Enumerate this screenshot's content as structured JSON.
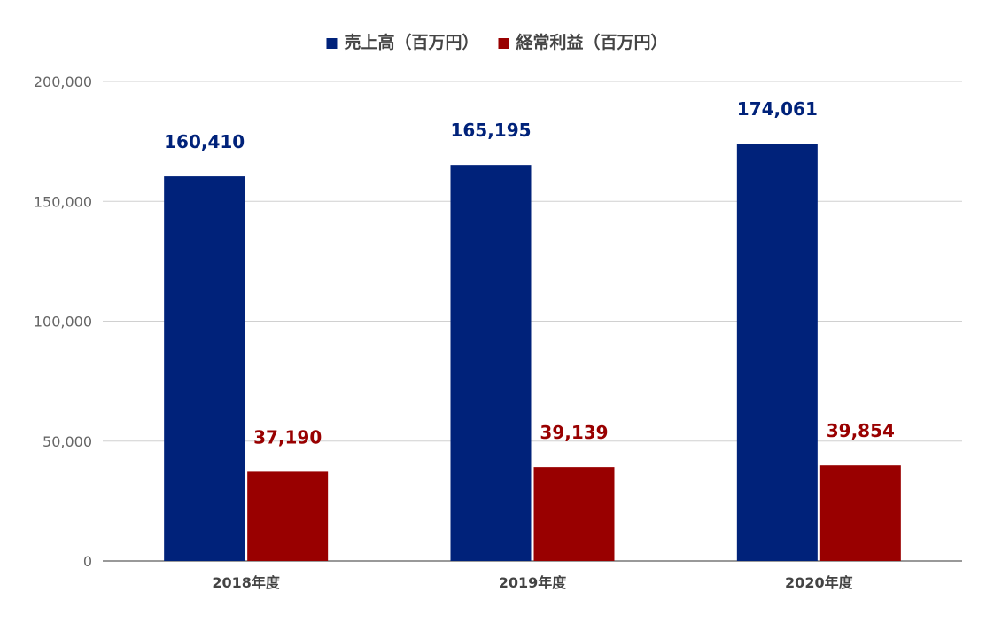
{
  "chart_data": {
    "type": "bar",
    "categories": [
      "2018年度",
      "2019年度",
      "2020年度"
    ],
    "series": [
      {
        "name": "売上高（百万円）",
        "color": "#00227a",
        "values": [
          160410,
          165195,
          174061
        ],
        "labels": [
          "160,410",
          "165,195",
          "174,061"
        ]
      },
      {
        "name": "経常利益（百万円）",
        "color": "#990000",
        "values": [
          37190,
          39139,
          39854
        ],
        "labels": [
          "37,190",
          "39,139",
          "39,854"
        ]
      }
    ],
    "ylim": [
      0,
      200000
    ],
    "yticks": [
      0,
      50000,
      100000,
      150000,
      200000
    ],
    "ytick_labels": [
      "0",
      "50,000",
      "100,000",
      "150,000",
      "200,000"
    ],
    "legend_position": "top",
    "grid": true,
    "title": "",
    "xlabel": "",
    "ylabel": ""
  }
}
